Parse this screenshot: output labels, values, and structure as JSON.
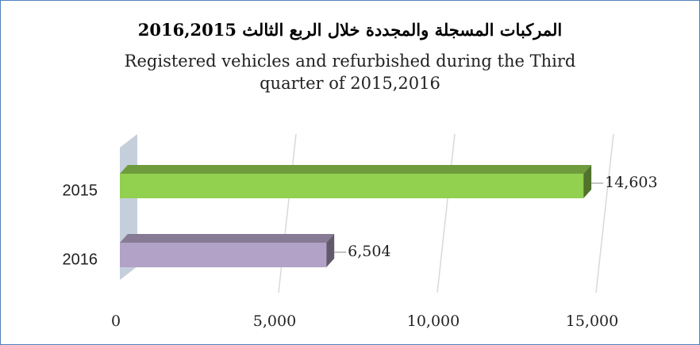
{
  "chart_data": {
    "type": "bar",
    "orientation": "horizontal",
    "title": "المركبات المسجلة والمجددة خلال الربع الثالث 2016,2015",
    "subtitle": "Registered vehicles and refurbished during the Third quarter of 2015,2016",
    "categories": [
      "2015",
      "2016"
    ],
    "values": [
      14603,
      6504
    ],
    "value_labels": [
      "14,603",
      "6,504"
    ],
    "colors": [
      "#92d050",
      "#b3a2c7"
    ],
    "xlim": [
      0,
      15000
    ],
    "xticks": [
      0,
      {
        "value": 5000,
        "label": "5,000"
      },
      {
        "value": 10000,
        "label": "10,000"
      },
      {
        "value": 15000,
        "label": "15,000"
      }
    ],
    "grid": true
  }
}
